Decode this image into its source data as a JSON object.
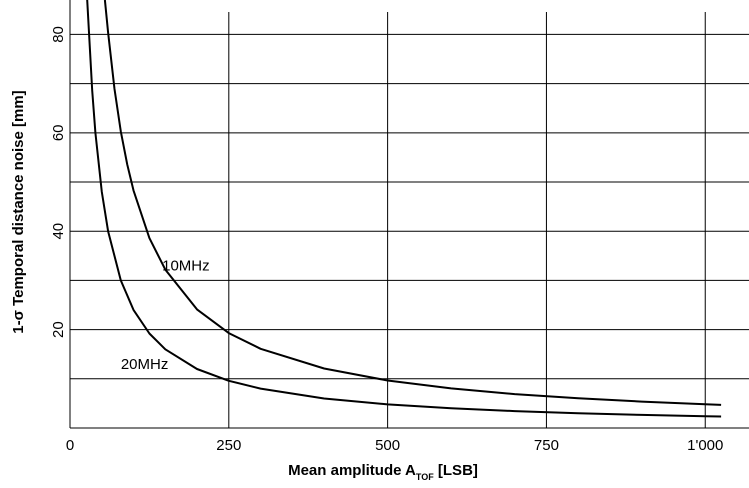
{
  "chart_data": {
    "type": "line",
    "xlabel_main": "Mean amplitude A",
    "xlabel_sub": "TOF",
    "xlabel_tail": " [LSB]",
    "ylabel": "1-σ Temporal distance noise [mm]",
    "xlim": [
      0,
      1050
    ],
    "ylim": [
      0,
      87
    ],
    "xticks": [
      0,
      250,
      500,
      750,
      1000
    ],
    "xtick_labels": [
      "0",
      "250",
      "500",
      "750",
      "1'000"
    ],
    "yticks": [
      20,
      40,
      60,
      80
    ],
    "ytick_labels": [
      "20",
      "40",
      "60",
      "80"
    ],
    "ygrid": [
      10,
      20,
      30,
      40,
      50,
      60,
      70,
      80
    ],
    "grid": true,
    "series": [
      {
        "name": "10MHz",
        "x": [
          55,
          60,
          70,
          80,
          90,
          100,
          125,
          150,
          200,
          250,
          300,
          400,
          500,
          600,
          700,
          800,
          900,
          1000,
          1025
        ],
        "y": [
          87,
          80.4,
          68.9,
          60.3,
          53.6,
          48.3,
          38.6,
          32.2,
          24.1,
          19.3,
          16.1,
          12.1,
          9.65,
          8.04,
          6.89,
          6.03,
          5.36,
          4.83,
          4.7
        ],
        "label_at": [
          145,
          33
        ]
      },
      {
        "name": "20MHz",
        "x": [
          27,
          30,
          35,
          40,
          50,
          60,
          80,
          100,
          125,
          150,
          200,
          250,
          300,
          400,
          500,
          600,
          700,
          800,
          900,
          1000,
          1025
        ],
        "y": [
          87,
          80,
          68.6,
          60,
          48,
          40,
          30,
          24,
          19.2,
          16,
          12,
          9.6,
          8,
          6,
          4.8,
          4,
          3.43,
          3,
          2.67,
          2.4,
          2.34
        ],
        "label_at": [
          80,
          13
        ]
      }
    ],
    "line_color": "#000000",
    "grid_color": "#000000"
  }
}
